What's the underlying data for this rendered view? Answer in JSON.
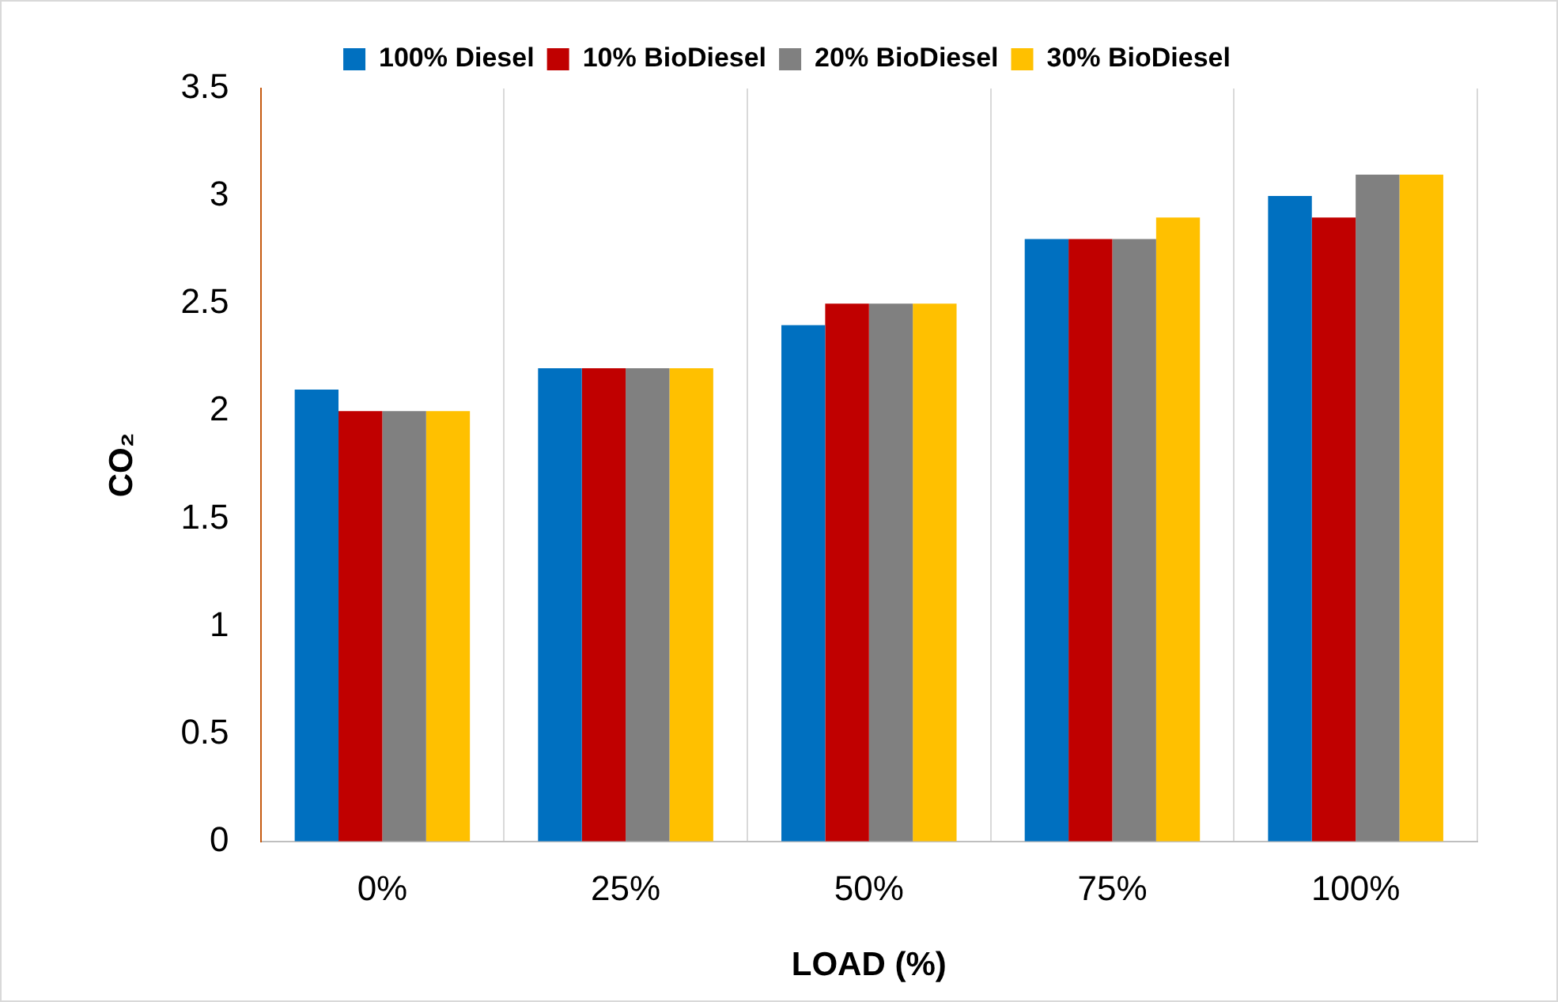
{
  "chart_data": {
    "type": "bar",
    "xlabel": "LOAD (%)",
    "ylabel": "CO₂",
    "categories": [
      "0%",
      "25%",
      "50%",
      "75%",
      "100%"
    ],
    "series": [
      {
        "name": "100% Diesel",
        "color": "#0070c0",
        "values": [
          2.1,
          2.2,
          2.4,
          2.8,
          3.0
        ]
      },
      {
        "name": "10% BioDiesel",
        "color": "#c00000",
        "values": [
          2.0,
          2.2,
          2.5,
          2.8,
          2.9
        ]
      },
      {
        "name": "20% BioDiesel",
        "color": "#808080",
        "values": [
          2.0,
          2.2,
          2.5,
          2.8,
          3.1
        ]
      },
      {
        "name": "30% BioDiesel",
        "color": "#ffc000",
        "values": [
          2.0,
          2.2,
          2.5,
          2.9,
          3.1
        ]
      }
    ],
    "ylim": [
      0,
      3.5
    ],
    "yticks": [
      0,
      0.5,
      1,
      1.5,
      2,
      2.5,
      3,
      3.5
    ],
    "grid": "x",
    "legend": "top"
  }
}
